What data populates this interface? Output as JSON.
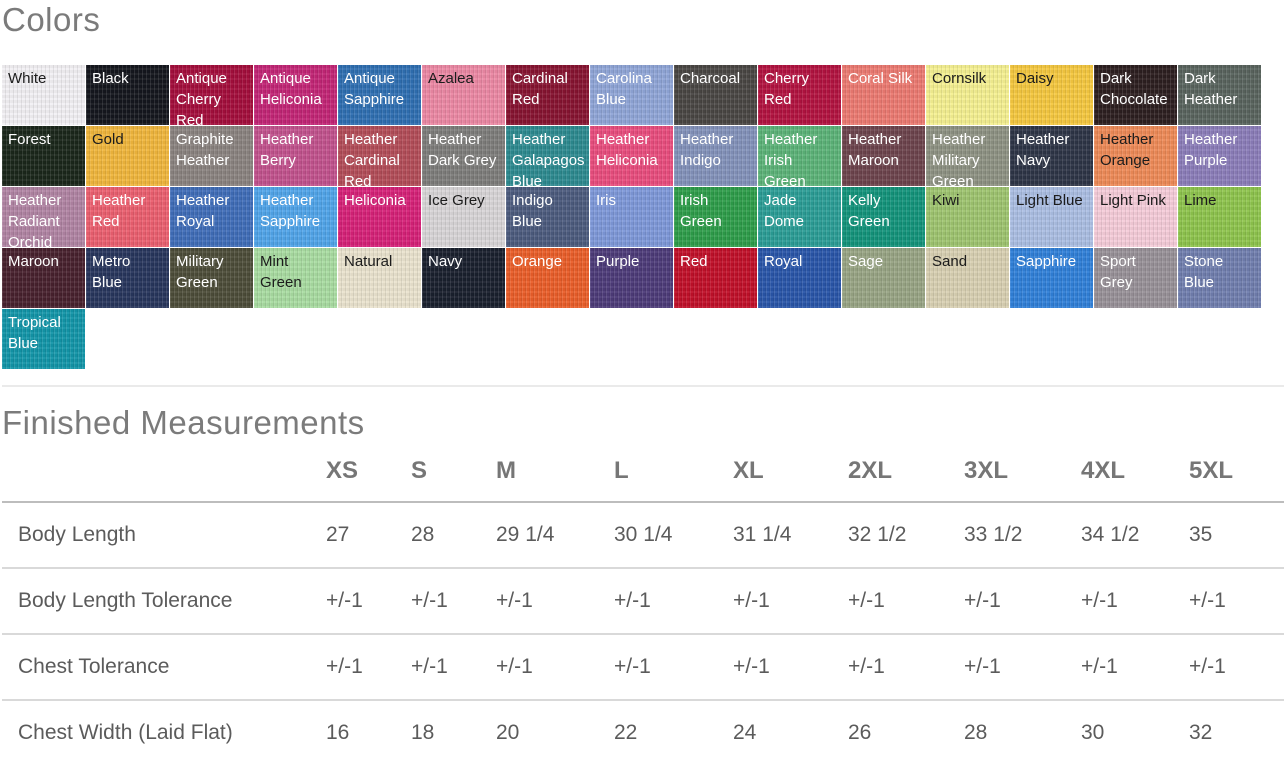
{
  "colors_section": {
    "title": "Colors",
    "swatches": [
      {
        "name": "White",
        "bg": "#f2f0f4",
        "fg": "#1c1c1c"
      },
      {
        "name": "Black",
        "bg": "#15171e",
        "fg": "#ffffff"
      },
      {
        "name": "Antique Cherry Red",
        "bg": "#a40e3c",
        "fg": "#ffffff"
      },
      {
        "name": "Antique Heliconia",
        "bg": "#c32576",
        "fg": "#ffffff"
      },
      {
        "name": "Antique Sapphire",
        "bg": "#2f6fb2",
        "fg": "#ffffff"
      },
      {
        "name": "Azalea",
        "bg": "#ec88a4",
        "fg": "#1c1c1c"
      },
      {
        "name": "Cardinal Red",
        "bg": "#871431",
        "fg": "#ffffff"
      },
      {
        "name": "Carolina Blue",
        "bg": "#90a5d7",
        "fg": "#ffffff"
      },
      {
        "name": "Charcoal",
        "bg": "#4a4744",
        "fg": "#ffffff"
      },
      {
        "name": "Cherry Red",
        "bg": "#b31340",
        "fg": "#ffffff"
      },
      {
        "name": "Coral Silk",
        "bg": "#ec7a71",
        "fg": "#ffffff"
      },
      {
        "name": "Cornsilk",
        "bg": "#f5f091",
        "fg": "#1c1c1c"
      },
      {
        "name": "Daisy",
        "bg": "#f5c83f",
        "fg": "#1c1c1c"
      },
      {
        "name": "Dark Chocolate",
        "bg": "#2d1f20",
        "fg": "#ffffff"
      },
      {
        "name": "Dark Heather",
        "bg": "#59645e",
        "fg": "#ffffff"
      },
      {
        "name": "Forest",
        "bg": "#1b271b",
        "fg": "#ffffff"
      },
      {
        "name": "Gold",
        "bg": "#f0b63c",
        "fg": "#1c1c1c"
      },
      {
        "name": "Graphite Heather",
        "bg": "#8a8380",
        "fg": "#ffffff"
      },
      {
        "name": "Heather Berry",
        "bg": "#c2528d",
        "fg": "#ffffff"
      },
      {
        "name": "Heather Cardinal Red",
        "bg": "#b34d58",
        "fg": "#ffffff"
      },
      {
        "name": "Heather Dark Grey",
        "bg": "#7e7d7b",
        "fg": "#ffffff"
      },
      {
        "name": "Heather Galapagos Blue",
        "bg": "#2d8a90",
        "fg": "#ffffff"
      },
      {
        "name": "Heather Heliconia",
        "bg": "#e94d7e",
        "fg": "#ffffff"
      },
      {
        "name": "Heather Indigo",
        "bg": "#8392ba",
        "fg": "#ffffff"
      },
      {
        "name": "Heather Irish Green",
        "bg": "#5cb378",
        "fg": "#ffffff"
      },
      {
        "name": "Heather Maroon",
        "bg": "#6d444d",
        "fg": "#ffffff"
      },
      {
        "name": "Heather Military Green",
        "bg": "#8e9283",
        "fg": "#ffffff"
      },
      {
        "name": "Heather Navy",
        "bg": "#2e3547",
        "fg": "#ffffff"
      },
      {
        "name": "Heather Orange",
        "bg": "#ee8a57",
        "fg": "#1c1c1c"
      },
      {
        "name": "Heather Purple",
        "bg": "#8b7db9",
        "fg": "#ffffff"
      },
      {
        "name": "Heather Radiant Orchid",
        "bg": "#b184a3",
        "fg": "#ffffff"
      },
      {
        "name": "Heather Red",
        "bg": "#eb5f6f",
        "fg": "#ffffff"
      },
      {
        "name": "Heather Royal",
        "bg": "#3f6db8",
        "fg": "#ffffff"
      },
      {
        "name": "Heather Sapphire",
        "bg": "#50a4e9",
        "fg": "#ffffff"
      },
      {
        "name": "Heliconia",
        "bg": "#d62178",
        "fg": "#ffffff"
      },
      {
        "name": "Ice Grey",
        "bg": "#d8d5d7",
        "fg": "#1c1c1c"
      },
      {
        "name": "Indigo Blue",
        "bg": "#4c5b7e",
        "fg": "#ffffff"
      },
      {
        "name": "Iris",
        "bg": "#7e98d9",
        "fg": "#ffffff"
      },
      {
        "name": "Irish Green",
        "bg": "#2e9d4a",
        "fg": "#ffffff"
      },
      {
        "name": "Jade Dome",
        "bg": "#2b9d96",
        "fg": "#ffffff"
      },
      {
        "name": "Kelly Green",
        "bg": "#13947b",
        "fg": "#ffffff"
      },
      {
        "name": "Kiwi",
        "bg": "#9ec46f",
        "fg": "#1c1c1c"
      },
      {
        "name": "Light Blue",
        "bg": "#abbee3",
        "fg": "#1c1c1c"
      },
      {
        "name": "Light Pink",
        "bg": "#f5ccd9",
        "fg": "#1c1c1c"
      },
      {
        "name": "Lime",
        "bg": "#8ec44d",
        "fg": "#1c1c1c"
      },
      {
        "name": "Maroon",
        "bg": "#48212e",
        "fg": "#ffffff"
      },
      {
        "name": "Metro Blue",
        "bg": "#28365d",
        "fg": "#ffffff"
      },
      {
        "name": "Military Green",
        "bg": "#4d4d39",
        "fg": "#ffffff"
      },
      {
        "name": "Mint Green",
        "bg": "#a9dca1",
        "fg": "#1c1c1c"
      },
      {
        "name": "Natural",
        "bg": "#eae3ce",
        "fg": "#1c1c1c"
      },
      {
        "name": "Navy",
        "bg": "#1a202e",
        "fg": "#ffffff"
      },
      {
        "name": "Orange",
        "bg": "#ea5e29",
        "fg": "#ffffff"
      },
      {
        "name": "Purple",
        "bg": "#4d3b79",
        "fg": "#ffffff"
      },
      {
        "name": "Red",
        "bg": "#c11029",
        "fg": "#ffffff"
      },
      {
        "name": "Royal",
        "bg": "#2955a9",
        "fg": "#ffffff"
      },
      {
        "name": "Sage",
        "bg": "#98a484",
        "fg": "#ffffff"
      },
      {
        "name": "Sand",
        "bg": "#d8d0b2",
        "fg": "#1c1c1c"
      },
      {
        "name": "Sapphire",
        "bg": "#3080d8",
        "fg": "#ffffff"
      },
      {
        "name": "Sport Grey",
        "bg": "#989198",
        "fg": "#ffffff"
      },
      {
        "name": "Stone Blue",
        "bg": "#707eae",
        "fg": "#ffffff"
      },
      {
        "name": "Tropical Blue",
        "bg": "#1396a9",
        "fg": "#ffffff"
      }
    ]
  },
  "measurements_section": {
    "title": "Finished Measurements",
    "columns": [
      "XS",
      "S",
      "M",
      "L",
      "XL",
      "2XL",
      "3XL",
      "4XL",
      "5XL"
    ],
    "rows": [
      {
        "label": "Body Length",
        "values": [
          "27",
          "28",
          "29 1/4",
          "30 1/4",
          "31 1/4",
          "32 1/2",
          "33 1/2",
          "34 1/2",
          "35"
        ]
      },
      {
        "label": "Body Length Tolerance",
        "values": [
          "+/-1",
          "+/-1",
          "+/-1",
          "+/-1",
          "+/-1",
          "+/-1",
          "+/-1",
          "+/-1",
          "+/-1"
        ]
      },
      {
        "label": "Chest Tolerance",
        "values": [
          "+/-1",
          "+/-1",
          "+/-1",
          "+/-1",
          "+/-1",
          "+/-1",
          "+/-1",
          "+/-1",
          "+/-1"
        ]
      },
      {
        "label": "Chest Width (Laid Flat)",
        "values": [
          "16",
          "18",
          "20",
          "22",
          "24",
          "26",
          "28",
          "30",
          "32"
        ]
      }
    ]
  }
}
